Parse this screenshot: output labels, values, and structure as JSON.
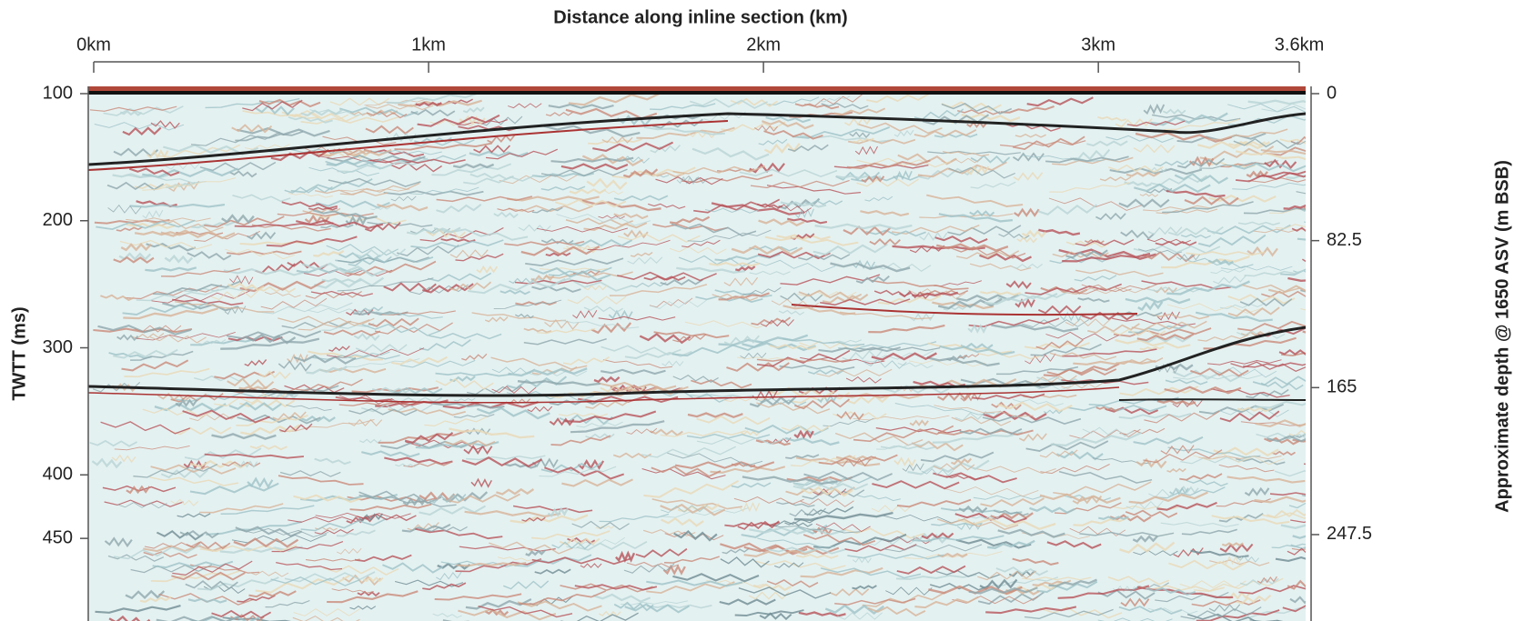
{
  "chart_data": {
    "type": "seismic-section",
    "x_label": "Distance along inline section (km)",
    "y_label": "TWTT (ms)",
    "y2_label": "Approximate depth @ 1650 ASV (m BSB)",
    "xlim": [
      0,
      3.6
    ],
    "xticks": [
      {
        "value": 0,
        "label": "0km"
      },
      {
        "value": 1,
        "label": "1km"
      },
      {
        "value": 2,
        "label": "2km"
      },
      {
        "value": 3,
        "label": "3km"
      },
      {
        "value": 3.6,
        "label": "3.6km"
      }
    ],
    "ylim": [
      100,
      515
    ],
    "yticks": [
      100,
      200,
      300,
      400,
      450
    ],
    "y2lim": [
      0,
      296
    ],
    "y2ticks": [
      0,
      82.5,
      165,
      247.5
    ]
  }
}
